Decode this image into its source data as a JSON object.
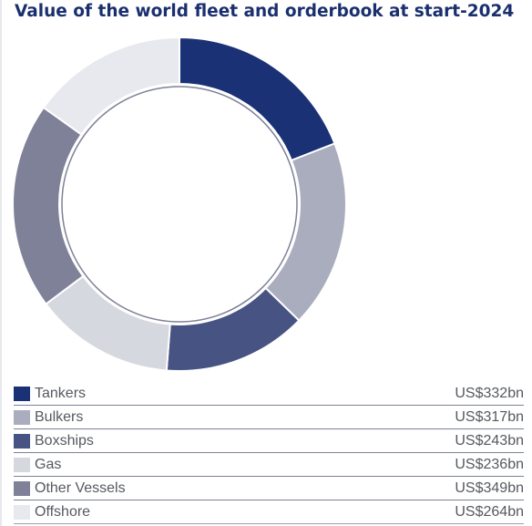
{
  "chart_data": {
    "type": "pie",
    "title": "Value of the world fleet and orderbook at start-2024",
    "legend_position": "bottom",
    "categories": [
      "Tankers",
      "Bulkers",
      "Boxships",
      "Gas",
      "Other Vessels",
      "Offshore"
    ],
    "values": [
      332,
      317,
      243,
      236,
      349,
      264
    ],
    "value_labels": [
      "US$332bn",
      "US$317bn",
      "US$243bn",
      "US$236bn",
      "US$349bn",
      "US$264bn"
    ],
    "unit": "US$bn",
    "colors": [
      "#1b3175",
      "#a9adbd",
      "#475383",
      "#d6d8df",
      "#7e8198",
      "#e8e9ee"
    ],
    "donut": true
  }
}
